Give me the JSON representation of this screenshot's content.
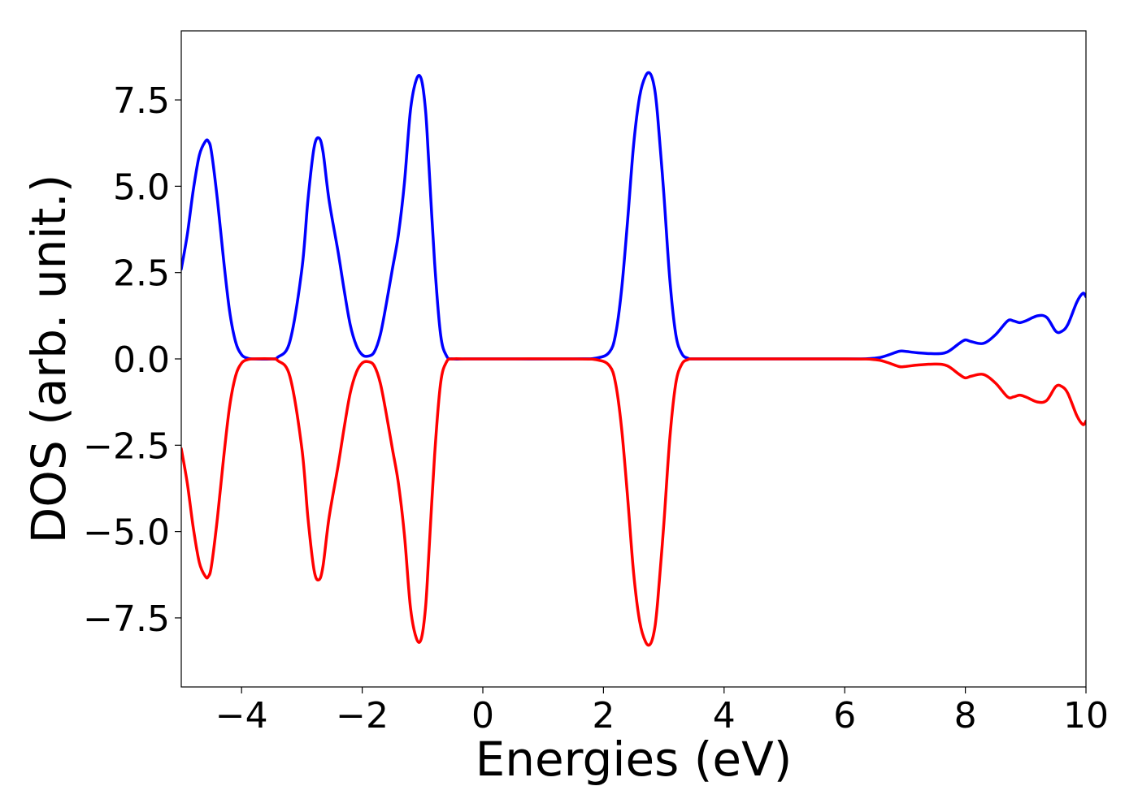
{
  "chart_data": {
    "type": "line",
    "title": "",
    "xlabel": "Energies (eV)",
    "ylabel": "DOS (arb. unit.)",
    "xlim": [
      -5,
      10
    ],
    "ylim": [
      -9.5,
      9.5
    ],
    "grid": false,
    "x_ticks": [
      -4,
      -2,
      0,
      2,
      4,
      6,
      8,
      10
    ],
    "x_tick_labels": [
      "−4",
      "−2",
      "0",
      "2",
      "4",
      "6",
      "8",
      "10"
    ],
    "y_ticks": [
      -7.5,
      -5.0,
      -2.5,
      0.0,
      2.5,
      5.0,
      7.5
    ],
    "y_tick_labels": [
      "−7.5",
      "−5.0",
      "−2.5",
      "0.0",
      "2.5",
      "5.0",
      "7.5"
    ],
    "series": [
      {
        "color": "#0000ff",
        "x": [
          -5.0,
          -4.9,
          -4.8,
          -4.7,
          -4.6,
          -4.55,
          -4.5,
          -4.4,
          -4.3,
          -4.2,
          -4.1,
          -4.0,
          -3.9,
          -3.8,
          -3.5,
          -3.4,
          -3.2,
          -3.0,
          -2.9,
          -2.8,
          -2.72,
          -2.65,
          -2.55,
          -2.4,
          -2.3,
          -2.2,
          -2.1,
          -2.0,
          -1.9,
          -1.8,
          -1.7,
          -1.6,
          -1.5,
          -1.4,
          -1.3,
          -1.2,
          -1.1,
          -1.02,
          -0.95,
          -0.9,
          -0.8,
          -0.7,
          -0.6,
          -0.5,
          -0.3,
          0.0,
          1.5,
          1.9,
          2.1,
          2.2,
          2.3,
          2.4,
          2.5,
          2.6,
          2.7,
          2.78,
          2.85,
          2.9,
          3.0,
          3.1,
          3.2,
          3.3,
          3.4,
          3.5,
          4.0,
          6.0,
          6.5,
          6.7,
          6.9,
          7.0,
          7.2,
          7.5,
          7.7,
          7.9,
          8.0,
          8.1,
          8.3,
          8.5,
          8.7,
          8.8,
          8.9,
          9.0,
          9.2,
          9.35,
          9.5,
          9.6,
          9.7,
          9.85,
          9.95,
          10.0
        ],
        "y": [
          2.6,
          3.6,
          4.9,
          5.9,
          6.3,
          6.3,
          6.0,
          4.6,
          2.9,
          1.4,
          0.5,
          0.12,
          0.02,
          0.0,
          0.0,
          0.05,
          0.5,
          2.6,
          4.6,
          6.1,
          6.4,
          6.0,
          4.6,
          3.1,
          2.0,
          1.0,
          0.4,
          0.12,
          0.08,
          0.2,
          0.7,
          1.6,
          2.6,
          3.6,
          5.1,
          7.2,
          8.1,
          8.1,
          7.2,
          5.8,
          2.8,
          0.7,
          0.08,
          0.0,
          0.0,
          0.0,
          0.0,
          0.03,
          0.2,
          0.7,
          2.0,
          4.0,
          6.2,
          7.6,
          8.2,
          8.25,
          7.8,
          7.0,
          4.8,
          2.3,
          0.7,
          0.15,
          0.02,
          0.0,
          0.0,
          0.0,
          0.02,
          0.1,
          0.22,
          0.22,
          0.18,
          0.15,
          0.2,
          0.45,
          0.55,
          0.5,
          0.45,
          0.7,
          1.1,
          1.1,
          1.05,
          1.1,
          1.25,
          1.2,
          0.8,
          0.8,
          1.0,
          1.65,
          1.9,
          1.8
        ]
      },
      {
        "color": "#ff0000",
        "x": [
          -5.0,
          -4.9,
          -4.8,
          -4.7,
          -4.6,
          -4.55,
          -4.5,
          -4.4,
          -4.3,
          -4.2,
          -4.1,
          -4.0,
          -3.9,
          -3.8,
          -3.5,
          -3.4,
          -3.2,
          -3.0,
          -2.9,
          -2.8,
          -2.72,
          -2.65,
          -2.55,
          -2.4,
          -2.3,
          -2.2,
          -2.1,
          -2.0,
          -1.9,
          -1.8,
          -1.7,
          -1.6,
          -1.5,
          -1.4,
          -1.3,
          -1.2,
          -1.1,
          -1.02,
          -0.95,
          -0.9,
          -0.8,
          -0.7,
          -0.6,
          -0.5,
          -0.3,
          0.0,
          1.5,
          1.9,
          2.1,
          2.2,
          2.3,
          2.4,
          2.5,
          2.6,
          2.7,
          2.78,
          2.85,
          2.9,
          3.0,
          3.1,
          3.2,
          3.3,
          3.4,
          3.5,
          4.0,
          6.0,
          6.5,
          6.7,
          6.9,
          7.0,
          7.2,
          7.5,
          7.7,
          7.9,
          8.0,
          8.1,
          8.3,
          8.5,
          8.7,
          8.8,
          8.9,
          9.0,
          9.2,
          9.35,
          9.5,
          9.6,
          9.7,
          9.85,
          9.95,
          10.0
        ],
        "y": [
          -2.6,
          -3.6,
          -4.9,
          -5.9,
          -6.3,
          -6.3,
          -6.0,
          -4.6,
          -2.9,
          -1.4,
          -0.5,
          -0.12,
          -0.02,
          0.0,
          0.0,
          -0.05,
          -0.5,
          -2.6,
          -4.6,
          -6.1,
          -6.4,
          -6.0,
          -4.6,
          -3.1,
          -2.0,
          -1.0,
          -0.4,
          -0.12,
          -0.08,
          -0.2,
          -0.7,
          -1.6,
          -2.6,
          -3.6,
          -5.1,
          -7.2,
          -8.1,
          -8.1,
          -7.2,
          -5.8,
          -2.8,
          -0.7,
          -0.08,
          0.0,
          0.0,
          0.0,
          0.0,
          -0.03,
          -0.2,
          -0.7,
          -2.0,
          -4.0,
          -6.2,
          -7.6,
          -8.2,
          -8.25,
          -7.8,
          -7.0,
          -4.8,
          -2.3,
          -0.7,
          -0.15,
          -0.02,
          0.0,
          0.0,
          0.0,
          -0.02,
          -0.1,
          -0.22,
          -0.22,
          -0.18,
          -0.15,
          -0.2,
          -0.45,
          -0.55,
          -0.5,
          -0.45,
          -0.7,
          -1.1,
          -1.1,
          -1.05,
          -1.1,
          -1.25,
          -1.2,
          -0.8,
          -0.8,
          -1.0,
          -1.65,
          -1.9,
          -1.8
        ]
      }
    ]
  }
}
